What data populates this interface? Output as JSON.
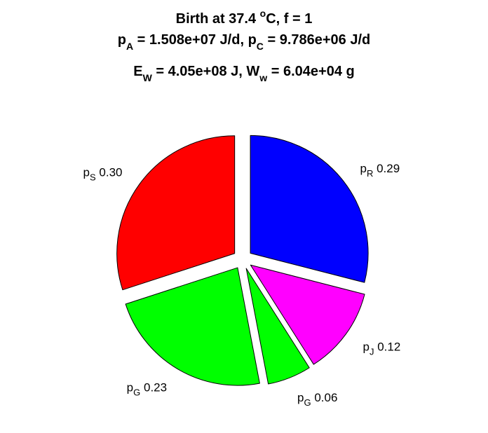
{
  "chart_data": {
    "type": "pie",
    "title": {
      "line1": {
        "main": "Birth at 37.4 ",
        "sup": "o",
        "tail": "C, f = 1"
      },
      "line2": {
        "a_main": "p",
        "a_sub": "A",
        "a_val": " = 1.508e+07 J/d, ",
        "c_main": "p",
        "c_sub": "C",
        "c_val": " = 9.786e+06 J/d"
      },
      "line3": {
        "e_main": "E",
        "e_sub": "W",
        "e_val": " = 4.05e+08 J, ",
        "w_main": "W",
        "w_sub": "w",
        "w_val": " = 6.04e+04 g"
      }
    },
    "slices": [
      {
        "main": "p",
        "sub": "R",
        "value_label": "0.29",
        "value": 0.29,
        "color": "#0000ff"
      },
      {
        "main": "p",
        "sub": "J",
        "value_label": "0.12",
        "value": 0.12,
        "color": "#ff00ff"
      },
      {
        "main": "p",
        "sub": "G",
        "value_label": "0.06",
        "value": 0.06,
        "color": "#00ff00"
      },
      {
        "main": "p",
        "sub": "G",
        "value_label": "0.23",
        "value": 0.23,
        "color": "#00ff00"
      },
      {
        "main": "p",
        "sub": "S",
        "value_label": "0.30",
        "value": 0.3,
        "color": "#ff0000"
      }
    ]
  }
}
